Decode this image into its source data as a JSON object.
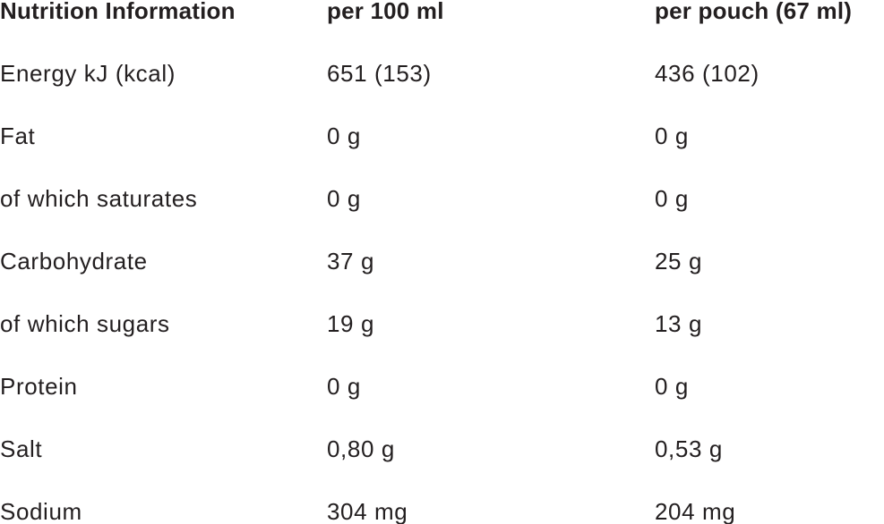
{
  "table": {
    "header": [
      "Nutrition Information",
      "per 100 ml",
      "per pouch (67 ml)"
    ],
    "rows": [
      [
        "Energy kJ (kcal)",
        "651 (153)",
        "436 (102)"
      ],
      [
        "Fat",
        "0 g",
        "0 g"
      ],
      [
        "of which saturates",
        "0 g",
        "0 g"
      ],
      [
        "Carbohydrate",
        "37 g",
        "25 g"
      ],
      [
        "of which sugars",
        "19 g",
        "13 g"
      ],
      [
        "Protein",
        "0 g",
        "0 g"
      ],
      [
        "Salt",
        "0,80 g",
        "0,53 g"
      ],
      [
        "Sodium",
        "304 mg",
        "204 mg"
      ]
    ]
  }
}
